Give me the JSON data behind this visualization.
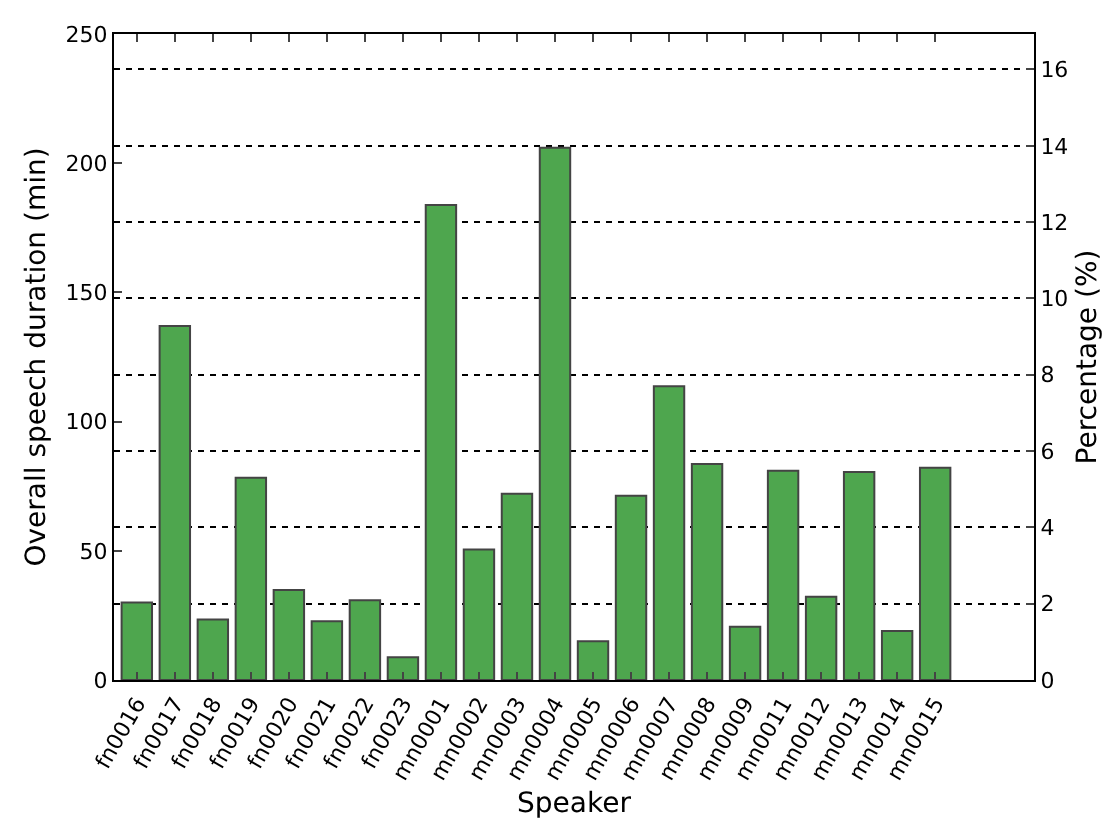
{
  "chart_data": {
    "type": "bar",
    "xlabel": "Speaker",
    "ylabel": "Overall speech duration (min)",
    "y2label": "Percentage (%)",
    "categories": [
      "fn0016",
      "fn0017",
      "fn0018",
      "fn0019",
      "fn0020",
      "fn0021",
      "fn0022",
      "fn0023",
      "mn0001",
      "mn0002",
      "mn0003",
      "mn0004",
      "mn0005",
      "mn0006",
      "mn0007",
      "mn0008",
      "mn0009",
      "mn0011",
      "mn0012",
      "mn0013",
      "mn0014",
      "mn0015"
    ],
    "series": [
      {
        "color": "#4ea64e",
        "values": [
          30,
          137,
          23.4,
          78.3,
          34.8,
          22.7,
          30.9,
          8.8,
          183.8,
          50.5,
          72.1,
          206,
          15,
          71.3,
          113.7,
          83.6,
          20.6,
          81,
          32.2,
          80.5,
          19,
          82.1
        ]
      }
    ],
    "ylim": [
      0,
      250
    ],
    "yticks": [
      0,
      50,
      100,
      150,
      200,
      250
    ],
    "y2lim": [
      0,
      16.93
    ],
    "y2ticks": [
      0,
      2,
      4,
      6,
      8,
      10,
      12,
      14,
      16
    ],
    "grid": true
  }
}
